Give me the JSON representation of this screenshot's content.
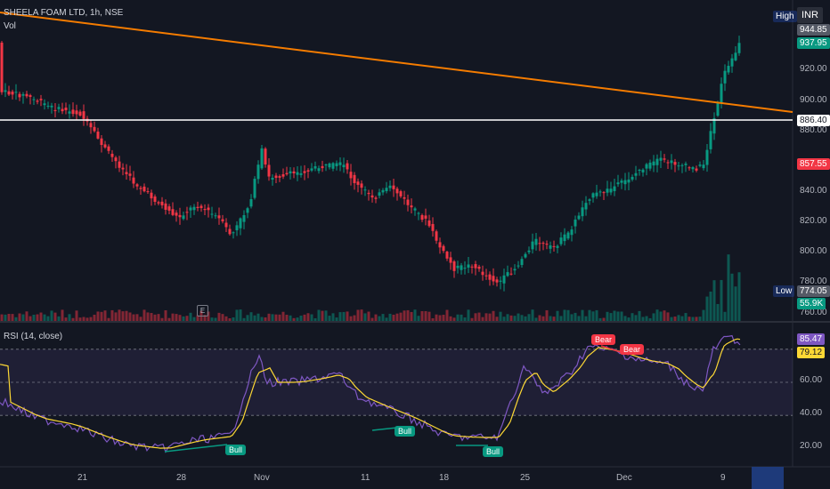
{
  "header": {
    "symbol": "SHEELA FOAM LTD, 1h, NSE",
    "volume_label": "Vol",
    "currency": "INR"
  },
  "price_axis": {
    "ticks": [
      "944.85",
      "937.95",
      "920.00",
      "900.00",
      "886.40",
      "880.00",
      "857.55",
      "840.00",
      "820.00",
      "800.00",
      "780.00",
      "774.05",
      "760.00"
    ],
    "high_label": "High",
    "high_value": "944.85",
    "current_price": "937.95",
    "hline_price": "886.40",
    "prev_close": "857.55",
    "low_label": "Low",
    "low_value": "774.05",
    "volume_value": "55.9K",
    "accent_green": "#089981",
    "accent_red": "#f23645"
  },
  "rsi": {
    "title": "RSI (14, close)",
    "value": "85.47",
    "ma_value": "79.12",
    "ticks": [
      "60.00",
      "40.00",
      "20.00"
    ],
    "line_color": "#7e57c2",
    "ma_color": "#fdd835",
    "signals": [
      "Bull",
      "Bull",
      "Bull",
      "Bear",
      "Bear"
    ]
  },
  "time_axis": {
    "labels": [
      "21",
      "28",
      "Nov",
      "11",
      "18",
      "25",
      "Dec",
      "9"
    ]
  },
  "event_marker": "E"
}
